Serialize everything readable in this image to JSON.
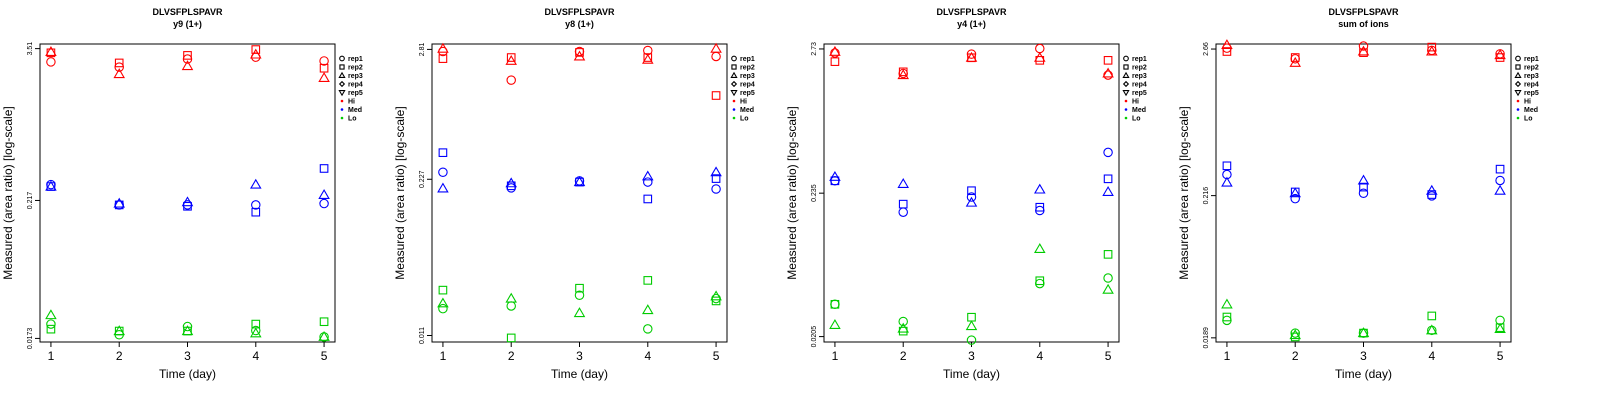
{
  "chart_data": [
    {
      "type": "scatter",
      "title": "DLVSFPLSPAVR",
      "subtitle": "y9 (1+)",
      "xlabel": "Time (day)",
      "ylabel": "Measured (area ratio) [log-scale]",
      "log_y": true,
      "x": [
        1,
        2,
        3,
        4,
        5
      ],
      "ylim": [
        0.0162,
        3.82
      ],
      "yticks": [
        "0.0173",
        "0.217",
        "3.51"
      ],
      "ytick_values": [
        0.0173,
        0.217,
        3.51
      ],
      "legend_position": "right",
      "series": [
        {
          "name": "rep1",
          "level": "Hi",
          "marker": "circle",
          "values": [
            2.75,
            2.5,
            2.9,
            3.0,
            2.8
          ]
        },
        {
          "name": "rep2",
          "level": "Hi",
          "marker": "square",
          "values": [
            3.25,
            2.7,
            3.1,
            3.45,
            2.45
          ]
        },
        {
          "name": "rep3",
          "level": "Hi",
          "marker": "triangle",
          "values": [
            3.3,
            2.2,
            2.55,
            3.15,
            2.05
          ]
        },
        {
          "name": "rep1",
          "level": "Med",
          "marker": "circle",
          "values": [
            0.29,
            0.2,
            0.2,
            0.2,
            0.205
          ]
        },
        {
          "name": "rep2",
          "level": "Med",
          "marker": "square",
          "values": [
            0.28,
            0.2,
            0.195,
            0.175,
            0.39
          ]
        },
        {
          "name": "rep3",
          "level": "Med",
          "marker": "triangle",
          "values": [
            0.28,
            0.205,
            0.21,
            0.29,
            0.24
          ]
        },
        {
          "name": "rep1",
          "level": "Lo",
          "marker": "circle",
          "values": [
            0.0225,
            0.0185,
            0.0215,
            0.02,
            0.0178
          ]
        },
        {
          "name": "rep2",
          "level": "Lo",
          "marker": "square",
          "values": [
            0.0205,
            0.0198,
            0.0198,
            0.0225,
            0.0235
          ]
        },
        {
          "name": "rep3",
          "level": "Lo",
          "marker": "triangle",
          "values": [
            0.0265,
            0.0198,
            0.0198,
            0.019,
            0.0178
          ]
        }
      ]
    },
    {
      "type": "scatter",
      "title": "DLVSFPLSPAVR",
      "subtitle": "y8 (1+)",
      "xlabel": "Time (day)",
      "ylabel": "Measured (area ratio) [log-scale]",
      "log_y": true,
      "x": [
        1,
        2,
        3,
        4,
        5
      ],
      "ylim": [
        0.0097,
        3.12
      ],
      "yticks": [
        "0.011",
        "0.227",
        "2.81"
      ],
      "ytick_values": [
        0.011,
        0.227,
        2.81
      ],
      "legend_position": "right",
      "series": [
        {
          "name": "rep1",
          "level": "Hi",
          "marker": "circle",
          "values": [
            2.7,
            1.55,
            2.7,
            2.75,
            2.45
          ]
        },
        {
          "name": "rep2",
          "level": "Hi",
          "marker": "square",
          "values": [
            2.35,
            2.4,
            2.65,
            2.4,
            1.15
          ]
        },
        {
          "name": "rep3",
          "level": "Hi",
          "marker": "triangle",
          "values": [
            2.85,
            2.25,
            2.45,
            2.3,
            2.85
          ]
        },
        {
          "name": "rep1",
          "level": "Med",
          "marker": "circle",
          "values": [
            0.26,
            0.192,
            0.22,
            0.215,
            0.188
          ]
        },
        {
          "name": "rep2",
          "level": "Med",
          "marker": "square",
          "values": [
            0.38,
            0.2,
            0.215,
            0.155,
            0.23
          ]
        },
        {
          "name": "rep3",
          "level": "Med",
          "marker": "triangle",
          "values": [
            0.19,
            0.21,
            0.215,
            0.24,
            0.26
          ]
        },
        {
          "name": "rep1",
          "level": "Lo",
          "marker": "circle",
          "values": [
            0.0185,
            0.0195,
            0.024,
            0.0125,
            0.0225
          ]
        },
        {
          "name": "rep2",
          "level": "Lo",
          "marker": "square",
          "values": [
            0.0265,
            0.0105,
            0.0275,
            0.032,
            0.0215
          ]
        },
        {
          "name": "rep3",
          "level": "Lo",
          "marker": "triangle",
          "values": [
            0.0205,
            0.0225,
            0.017,
            0.018,
            0.0235
          ]
        }
      ]
    },
    {
      "type": "scatter",
      "title": "DLVSFPLSPAVR",
      "subtitle": "y4 (1+)",
      "xlabel": "Time (day)",
      "ylabel": "Measured (area ratio) [log-scale]",
      "log_y": true,
      "x": [
        1,
        2,
        3,
        4,
        5
      ],
      "ylim": [
        0.0187,
        2.97
      ],
      "yticks": [
        "0.0205",
        "0.235",
        "2.73"
      ],
      "ytick_values": [
        0.0205,
        0.235,
        2.73
      ],
      "legend_position": "right",
      "series": [
        {
          "name": "rep1",
          "level": "Hi",
          "marker": "circle",
          "values": [
            2.55,
            1.8,
            2.5,
            2.75,
            1.75
          ]
        },
        {
          "name": "rep2",
          "level": "Hi",
          "marker": "square",
          "values": [
            2.2,
            1.85,
            2.35,
            2.25,
            2.25
          ]
        },
        {
          "name": "rep3",
          "level": "Hi",
          "marker": "triangle",
          "values": [
            2.6,
            1.75,
            2.35,
            2.35,
            1.8
          ]
        },
        {
          "name": "rep1",
          "level": "Med",
          "marker": "circle",
          "values": [
            0.29,
            0.17,
            0.22,
            0.175,
            0.47
          ]
        },
        {
          "name": "rep2",
          "level": "Med",
          "marker": "square",
          "values": [
            0.29,
            0.195,
            0.245,
            0.185,
            0.3
          ]
        },
        {
          "name": "rep3",
          "level": "Med",
          "marker": "triangle",
          "values": [
            0.31,
            0.275,
            0.2,
            0.25,
            0.24
          ]
        },
        {
          "name": "rep1",
          "level": "Lo",
          "marker": "circle",
          "values": [
            0.0355,
            0.0265,
            0.0193,
            0.0505,
            0.0555
          ]
        },
        {
          "name": "rep2",
          "level": "Lo",
          "marker": "square",
          "values": [
            0.0355,
            0.0225,
            0.0285,
            0.053,
            0.083
          ]
        },
        {
          "name": "rep3",
          "level": "Lo",
          "marker": "triangle",
          "values": [
            0.025,
            0.0235,
            0.0245,
            0.091,
            0.0455
          ]
        }
      ]
    },
    {
      "type": "scatter",
      "title": "DLVSFPLSPAVR",
      "subtitle": "sum of ions",
      "xlabel": "Time (day)",
      "ylabel": "Measured (area ratio) [log-scale]",
      "log_y": true,
      "x": [
        1,
        2,
        3,
        4,
        5
      ],
      "ylim": [
        0.0176,
        2.9
      ],
      "yticks": [
        "0.0189",
        "0.216",
        "2.66"
      ],
      "ytick_values": [
        0.0189,
        0.216,
        2.66
      ],
      "legend_position": "right",
      "series": [
        {
          "name": "rep1",
          "level": "Hi",
          "marker": "circle",
          "values": [
            2.7,
            2.25,
            2.8,
            2.6,
            2.45
          ]
        },
        {
          "name": "rep2",
          "level": "Hi",
          "marker": "square",
          "values": [
            2.55,
            2.3,
            2.5,
            2.75,
            2.3
          ]
        },
        {
          "name": "rep3",
          "level": "Hi",
          "marker": "triangle",
          "values": [
            2.85,
            2.1,
            2.55,
            2.55,
            2.4
          ]
        },
        {
          "name": "rep1",
          "level": "Med",
          "marker": "circle",
          "values": [
            0.31,
            0.205,
            0.225,
            0.215,
            0.28
          ]
        },
        {
          "name": "rep2",
          "level": "Med",
          "marker": "square",
          "values": [
            0.36,
            0.23,
            0.25,
            0.22,
            0.34
          ]
        },
        {
          "name": "rep3",
          "level": "Med",
          "marker": "triangle",
          "values": [
            0.27,
            0.225,
            0.28,
            0.235,
            0.235
          ]
        },
        {
          "name": "rep1",
          "level": "Lo",
          "marker": "circle",
          "values": [
            0.0255,
            0.0205,
            0.0205,
            0.0215,
            0.0255
          ]
        },
        {
          "name": "rep2",
          "level": "Lo",
          "marker": "square",
          "values": [
            0.027,
            0.0192,
            0.0205,
            0.0275,
            0.0225
          ]
        },
        {
          "name": "rep3",
          "level": "Lo",
          "marker": "triangle",
          "values": [
            0.0335,
            0.0198,
            0.0205,
            0.0215,
            0.022
          ]
        }
      ]
    }
  ],
  "legend": {
    "reps": [
      {
        "label": "rep1",
        "marker": "circle"
      },
      {
        "label": "rep2",
        "marker": "square"
      },
      {
        "label": "rep3",
        "marker": "triangle"
      },
      {
        "label": "rep4",
        "marker": "diamond"
      },
      {
        "label": "rep5",
        "marker": "triangle-down"
      }
    ],
    "levels": [
      {
        "label": "Hi",
        "color": "#ff0000"
      },
      {
        "label": "Med",
        "color": "#0000ff"
      },
      {
        "label": "Lo",
        "color": "#00cc00"
      }
    ]
  },
  "colors": {
    "Hi": "#ff0000",
    "Med": "#0000ff",
    "Lo": "#00cc00"
  }
}
